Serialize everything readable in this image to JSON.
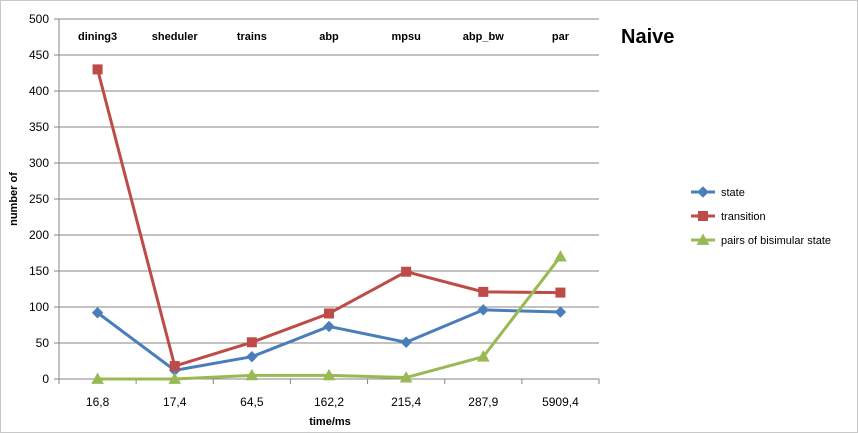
{
  "chart_data": {
    "type": "line",
    "title": "Naive",
    "xlabel": "time/ms",
    "ylabel": "number of",
    "x_tick_labels": [
      "16,8",
      "17,4",
      "64,5",
      "162,2",
      "215,4",
      "287,9",
      "5909,4"
    ],
    "categories": [
      "dining3",
      "sheduler",
      "trains",
      "abp",
      "mpsu",
      "abp_bw",
      "par"
    ],
    "ylim": [
      0,
      500
    ],
    "yticks": [
      0,
      50,
      100,
      150,
      200,
      250,
      300,
      350,
      400,
      450,
      500
    ],
    "grid": true,
    "legend_position": "right",
    "series": [
      {
        "name": "state",
        "color": "#4a7ebb",
        "marker": "diamond",
        "values": [
          92,
          12,
          31,
          73,
          51,
          96,
          93
        ]
      },
      {
        "name": "transition",
        "color": "#be4b48",
        "marker": "square",
        "values": [
          430,
          18,
          51,
          91,
          149,
          121,
          120
        ]
      },
      {
        "name": "pairs of bisimular  state",
        "color": "#98b954",
        "marker": "triangle",
        "values": [
          0,
          0,
          5,
          5,
          2,
          31,
          170
        ]
      }
    ]
  }
}
